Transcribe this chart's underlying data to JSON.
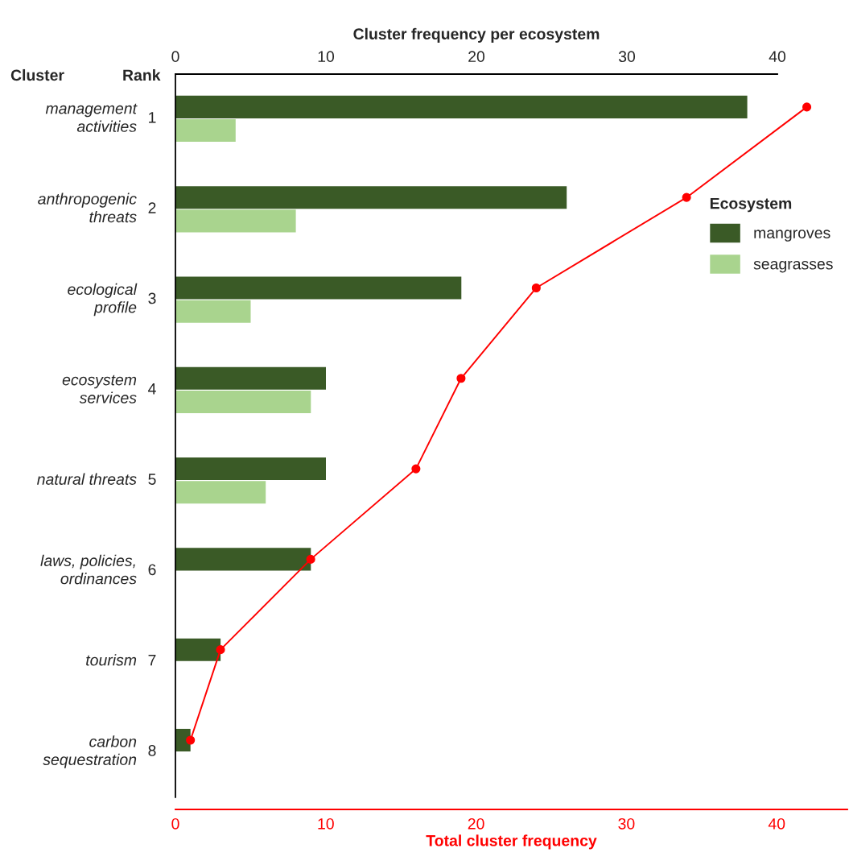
{
  "chart_data": {
    "type": "bar",
    "orientation": "horizontal",
    "categories": [
      "management\nactivities",
      "anthropogenic\nthreats",
      "ecological\nprofile",
      "ecosystem\nservices",
      "natural threats",
      "laws, policies,\nordinances",
      "tourism",
      "carbon\nsequestration"
    ],
    "y2_categories": [
      "1",
      "2",
      "3",
      "4",
      "5",
      "6",
      "7",
      "8"
    ],
    "annotations": [
      "Cluster",
      "Rank"
    ],
    "series": [
      {
        "name": "mangroves",
        "color": "#3a5a26",
        "axis": "x2",
        "values": [
          38,
          26,
          19,
          10,
          10,
          9,
          3,
          1
        ]
      },
      {
        "name": "seagrasses",
        "color": "#a9d48e",
        "axis": "x2",
        "values": [
          4,
          8,
          5,
          9,
          6,
          null,
          null,
          null
        ]
      },
      {
        "type": "line",
        "color": "#ff0000",
        "marker": "circle",
        "values": [
          42,
          34,
          24,
          19,
          16,
          9,
          3,
          1
        ]
      }
    ],
    "x2label": "Cluster frequency per ecosystem",
    "x2lim": [
      0,
      40
    ],
    "x2ticks": [
      0,
      10,
      20,
      30,
      40
    ],
    "xlabel": "Total cluster frequency",
    "xlim": [
      0,
      44.7
    ],
    "xticks": [
      0,
      10,
      20,
      30,
      40
    ],
    "legend_title": "Ecosystem",
    "legend": "right"
  }
}
